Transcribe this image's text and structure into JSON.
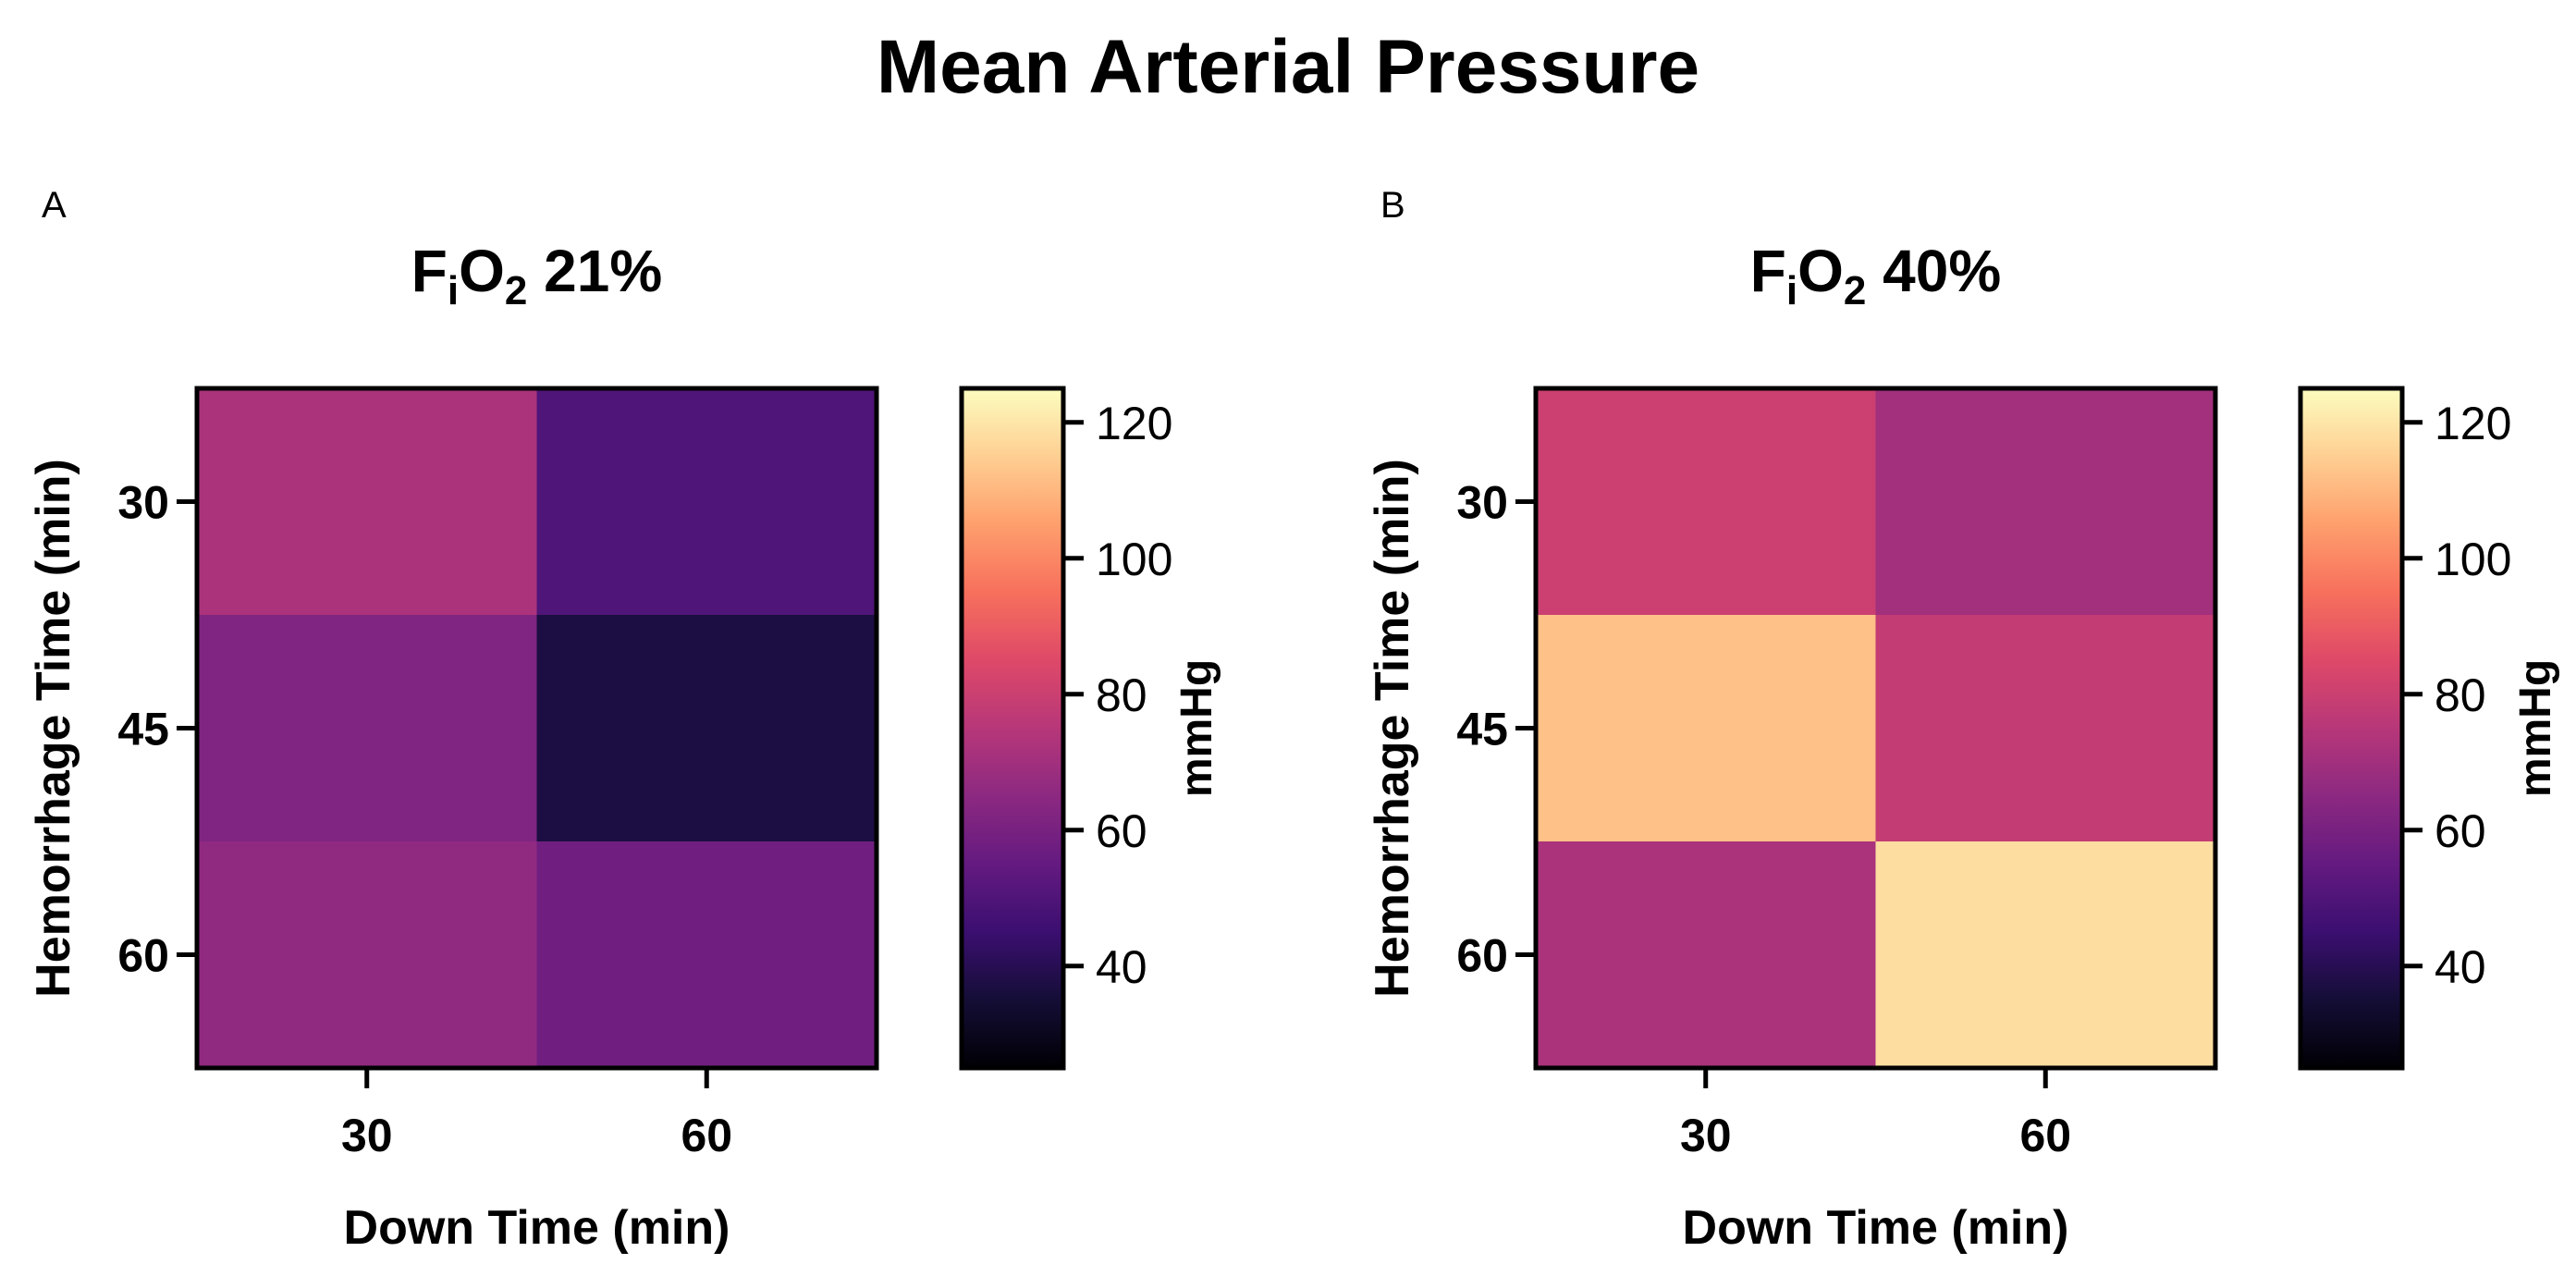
{
  "figure_title": "Mean Arterial Pressure",
  "chart_data": [
    {
      "type": "heatmap",
      "panel_label": "A",
      "title": {
        "base": "F",
        "sub1": "i",
        "mid": "O",
        "sub2": "2",
        "tail": " 21%"
      },
      "xlabel": "Down Time (min)",
      "ylabel": "Hemorrhage  Time  (min)",
      "x_categories": [
        "30",
        "60"
      ],
      "y_categories": [
        "30",
        "45",
        "60"
      ],
      "values": [
        [
          72,
          50
        ],
        [
          62,
          37
        ],
        [
          66,
          58
        ]
      ],
      "colorbar": {
        "label": "mmHg",
        "min": 25,
        "max": 125,
        "ticks": [
          "40",
          "60",
          "80",
          "100",
          "120"
        ],
        "colormap": "magma"
      }
    },
    {
      "type": "heatmap",
      "panel_label": "B",
      "title": {
        "base": "F",
        "sub1": "i",
        "mid": "O",
        "sub2": "2",
        "tail": " 40%"
      },
      "xlabel": "Down Time (min)",
      "ylabel": "Hemorrhage  Time  (min)",
      "x_categories": [
        "30",
        "60"
      ],
      "y_categories": [
        "30",
        "45",
        "60"
      ],
      "values": [
        [
          80,
          70
        ],
        [
          112,
          78
        ],
        [
          72,
          118
        ]
      ],
      "colorbar": {
        "label": "mmHg",
        "min": 25,
        "max": 125,
        "ticks": [
          "40",
          "60",
          "80",
          "100",
          "120"
        ],
        "colormap": "magma"
      }
    }
  ]
}
